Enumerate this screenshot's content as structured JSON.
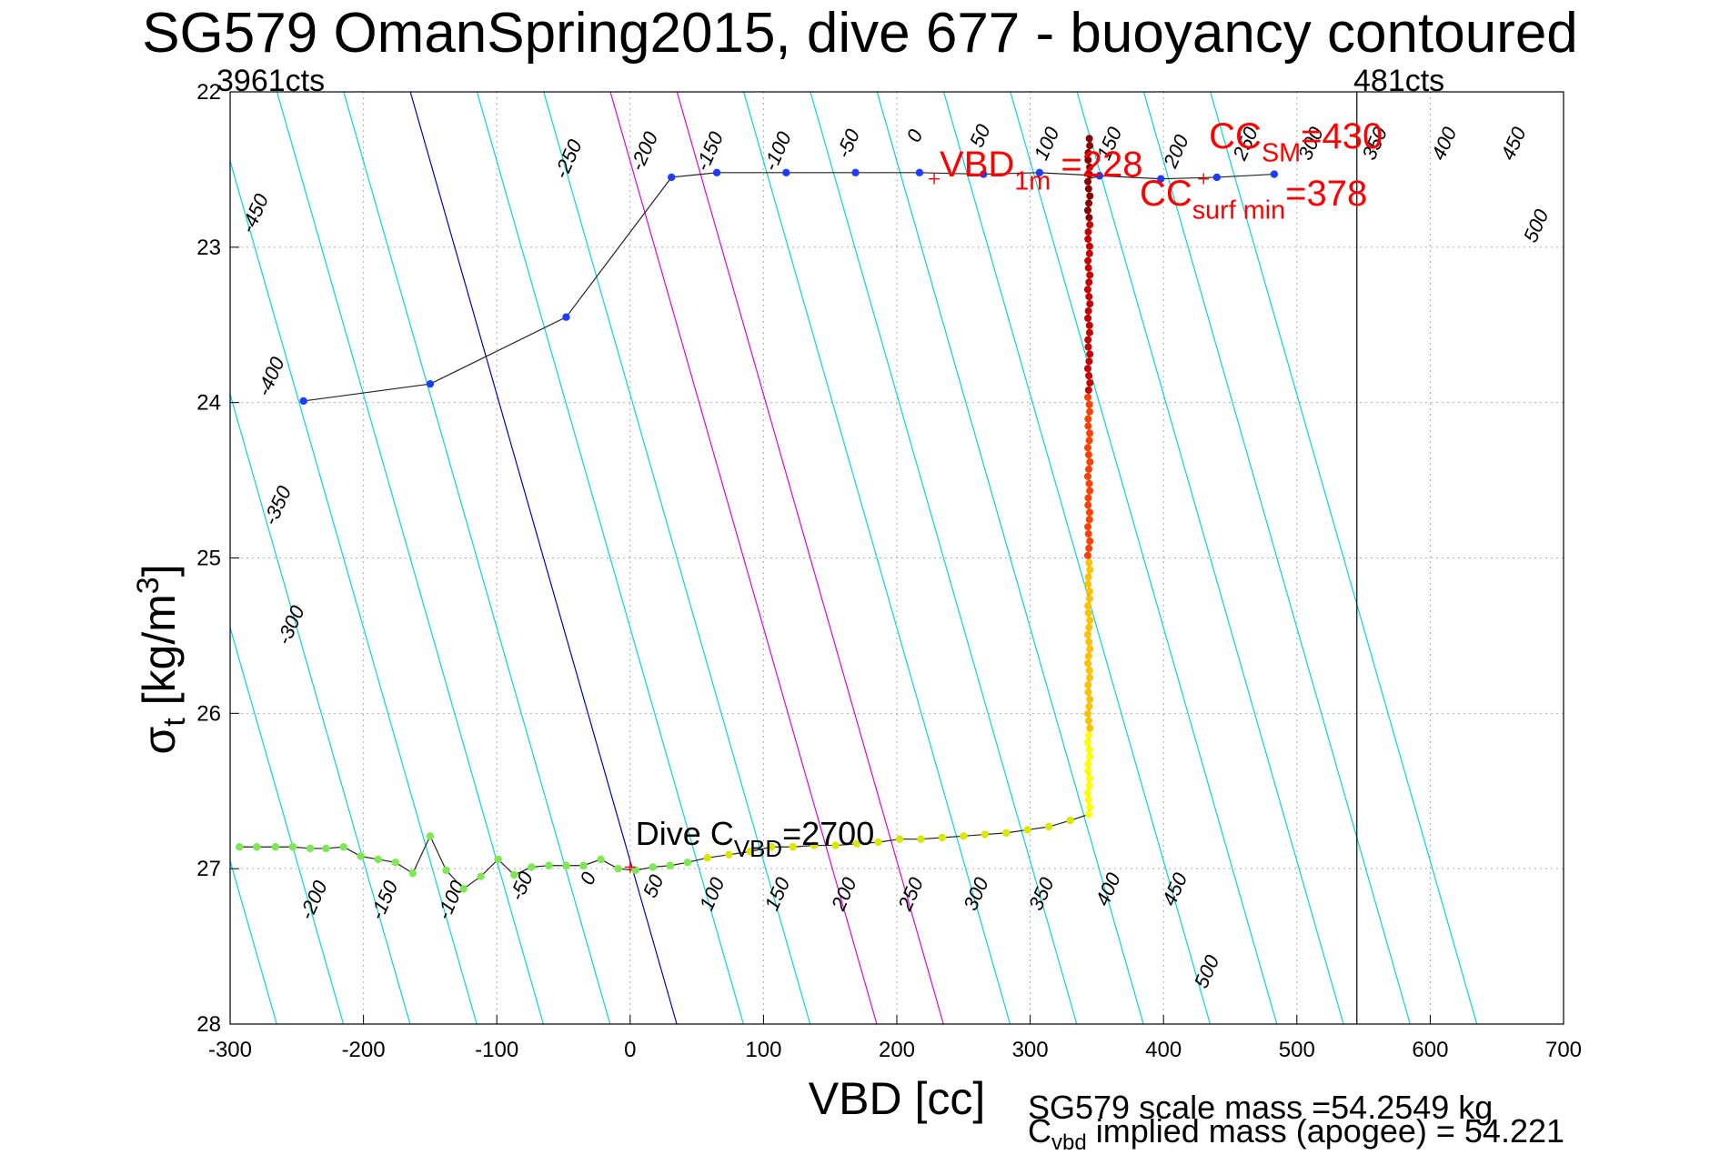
{
  "chart_data": {
    "type": "scatter",
    "title": "SG579 OmanSpring2015, dive 677 - buoyancy contoured",
    "xlabel": "VBD [cc]",
    "ylabel": "σt [kg/m3]",
    "ylabel_parts": {
      "sym": "σ",
      "sub": "t",
      "unit_a": " [kg/m",
      "sup": "3",
      "unit_b": "]"
    },
    "xlim": [
      -300,
      700
    ],
    "ylim": [
      22,
      28
    ],
    "y_reversed": true,
    "grid": true,
    "xticks": [
      "-300",
      "-200",
      "-100",
      "0",
      "100",
      "200",
      "300",
      "400",
      "500",
      "600",
      "700"
    ],
    "yticks": [
      "22",
      "23",
      "24",
      "25",
      "26",
      "27",
      "28"
    ],
    "top_left_label": "3961cts",
    "top_right_label": "481cts",
    "vertical_line_x": 545,
    "contour_slope": 33.3,
    "contours": {
      "levels": [
        -450,
        -400,
        -350,
        -300,
        -250,
        -200,
        -150,
        -100,
        -50,
        0,
        50,
        100,
        150,
        200,
        250,
        300,
        350,
        400,
        450,
        500
      ],
      "color": "#00d8d8",
      "zero_color": "#0000cc",
      "highlight_levels": [
        150,
        200
      ],
      "highlight_color": "#e000e0",
      "labels_top": [
        {
          "text": "-450",
          "x": -277,
          "y": 22.8
        },
        {
          "text": "-400",
          "x": -265,
          "y": 23.85
        },
        {
          "text": "-350",
          "x": -260,
          "y": 24.68
        },
        {
          "text": "-300",
          "x": -250,
          "y": 25.45
        },
        {
          "text": "-250",
          "x": -42,
          "y": 22.45
        },
        {
          "text": "-200",
          "x": 15,
          "y": 22.4
        },
        {
          "text": "-150",
          "x": 64,
          "y": 22.4
        },
        {
          "text": "-100",
          "x": 115,
          "y": 22.4
        },
        {
          "text": "-50",
          "x": 168,
          "y": 22.35
        },
        {
          "text": "0",
          "x": 218,
          "y": 22.3
        },
        {
          "text": "50",
          "x": 267,
          "y": 22.3
        },
        {
          "text": "100",
          "x": 317,
          "y": 22.35
        },
        {
          "text": "150",
          "x": 364,
          "y": 22.35
        },
        {
          "text": "200",
          "x": 414,
          "y": 22.4
        },
        {
          "text": "250",
          "x": 466,
          "y": 22.35
        },
        {
          "text": "300",
          "x": 515,
          "y": 22.35
        },
        {
          "text": "350",
          "x": 563,
          "y": 22.35
        },
        {
          "text": "400",
          "x": 615,
          "y": 22.35
        },
        {
          "text": "450",
          "x": 667,
          "y": 22.35
        },
        {
          "text": "500",
          "x": 684,
          "y": 22.88
        }
      ],
      "labels_bottom": [
        {
          "text": "-200",
          "x": -233,
          "y": 27.22
        },
        {
          "text": "-150",
          "x": -180,
          "y": 27.22
        },
        {
          "text": "-100",
          "x": -130,
          "y": 27.22
        },
        {
          "text": "-50",
          "x": -77,
          "y": 27.13
        },
        {
          "text": "0",
          "x": -27,
          "y": 27.08
        },
        {
          "text": "50",
          "x": 22,
          "y": 27.13
        },
        {
          "text": "100",
          "x": 66,
          "y": 27.18
        },
        {
          "text": "150",
          "x": 115,
          "y": 27.18
        },
        {
          "text": "200",
          "x": 165,
          "y": 27.18
        },
        {
          "text": "250",
          "x": 215,
          "y": 27.18
        },
        {
          "text": "300",
          "x": 264,
          "y": 27.18
        },
        {
          "text": "350",
          "x": 313,
          "y": 27.18
        },
        {
          "text": "400",
          "x": 363,
          "y": 27.15
        },
        {
          "text": "450",
          "x": 413,
          "y": 27.15
        },
        {
          "text": "500",
          "x": 437,
          "y": 27.68
        }
      ]
    },
    "series": [
      {
        "color": "#1c3cff",
        "x": [
          -245,
          -150,
          -48,
          31,
          65,
          117,
          169,
          217,
          265,
          307,
          352,
          398,
          440,
          483
        ],
        "y": [
          23.99,
          23.88,
          23.45,
          22.55,
          22.52,
          22.52,
          22.52,
          22.52,
          22.53,
          22.52,
          22.54,
          22.56,
          22.55,
          22.53
        ]
      },
      {
        "color": "#7de84f",
        "x": [
          -293,
          -280,
          -266,
          -253,
          -240,
          -228,
          -215,
          -202,
          -189,
          -176,
          -163,
          -150,
          -138,
          -125,
          -112,
          -99,
          -87,
          -74,
          -61,
          -48,
          -35,
          -22,
          -9,
          4,
          17,
          30,
          43
        ],
        "y": [
          26.86,
          26.86,
          26.86,
          26.86,
          26.87,
          26.87,
          26.86,
          26.92,
          26.94,
          26.96,
          27.03,
          26.79,
          27.01,
          27.13,
          27.05,
          26.94,
          27.04,
          26.99,
          26.98,
          26.98,
          26.98,
          26.94,
          27.0,
          27.01,
          26.99,
          26.98,
          26.96
        ]
      },
      {
        "color": "#d8e800",
        "x": [
          58,
          74,
          90,
          106,
          122,
          138,
          154,
          170,
          186,
          202,
          218,
          234,
          250,
          266,
          282,
          298,
          314,
          330
        ],
        "y": [
          26.93,
          26.91,
          26.89,
          26.86,
          26.86,
          26.85,
          26.85,
          26.84,
          26.83,
          26.81,
          26.81,
          26.8,
          26.79,
          26.78,
          26.77,
          26.75,
          26.73,
          26.69
        ]
      }
    ],
    "vertical_trace": {
      "x": 344,
      "y_range": [
        22.3,
        26.65
      ],
      "color_stops": [
        "#ffff00",
        "#ffc000",
        "#ff4000",
        "#c80000",
        "#8b0000"
      ]
    },
    "annotations": [
      {
        "base": "VBD",
        "sub": "1m",
        "rest": " =228",
        "color": "#ff0000",
        "marker_x": 228,
        "marker_y": 22.56,
        "x": 228,
        "y": 22.56
      },
      {
        "base": "CC",
        "sub": "SM",
        "rest": "=430",
        "color": "#ff0000",
        "marker_x": 430,
        "marker_y": 22.56,
        "x": 430,
        "y": 22.38
      },
      {
        "base": "CC",
        "sub": "surf min",
        "rest": "=378",
        "color": "#ff0000",
        "x": 378,
        "y": 22.75
      },
      {
        "base": "Dive C",
        "sub": "VBD",
        "rest": "=2700",
        "color": "#000000",
        "marker_x": 0,
        "marker_y": 26.99,
        "x": 0,
        "y": 26.86
      }
    ]
  },
  "footer": {
    "line1": "SG579 scale mass =54.2549 kg",
    "line2_base": "C",
    "line2_sub": "vbd",
    "line2_rest": " implied mass (apogee) = 54.221"
  }
}
